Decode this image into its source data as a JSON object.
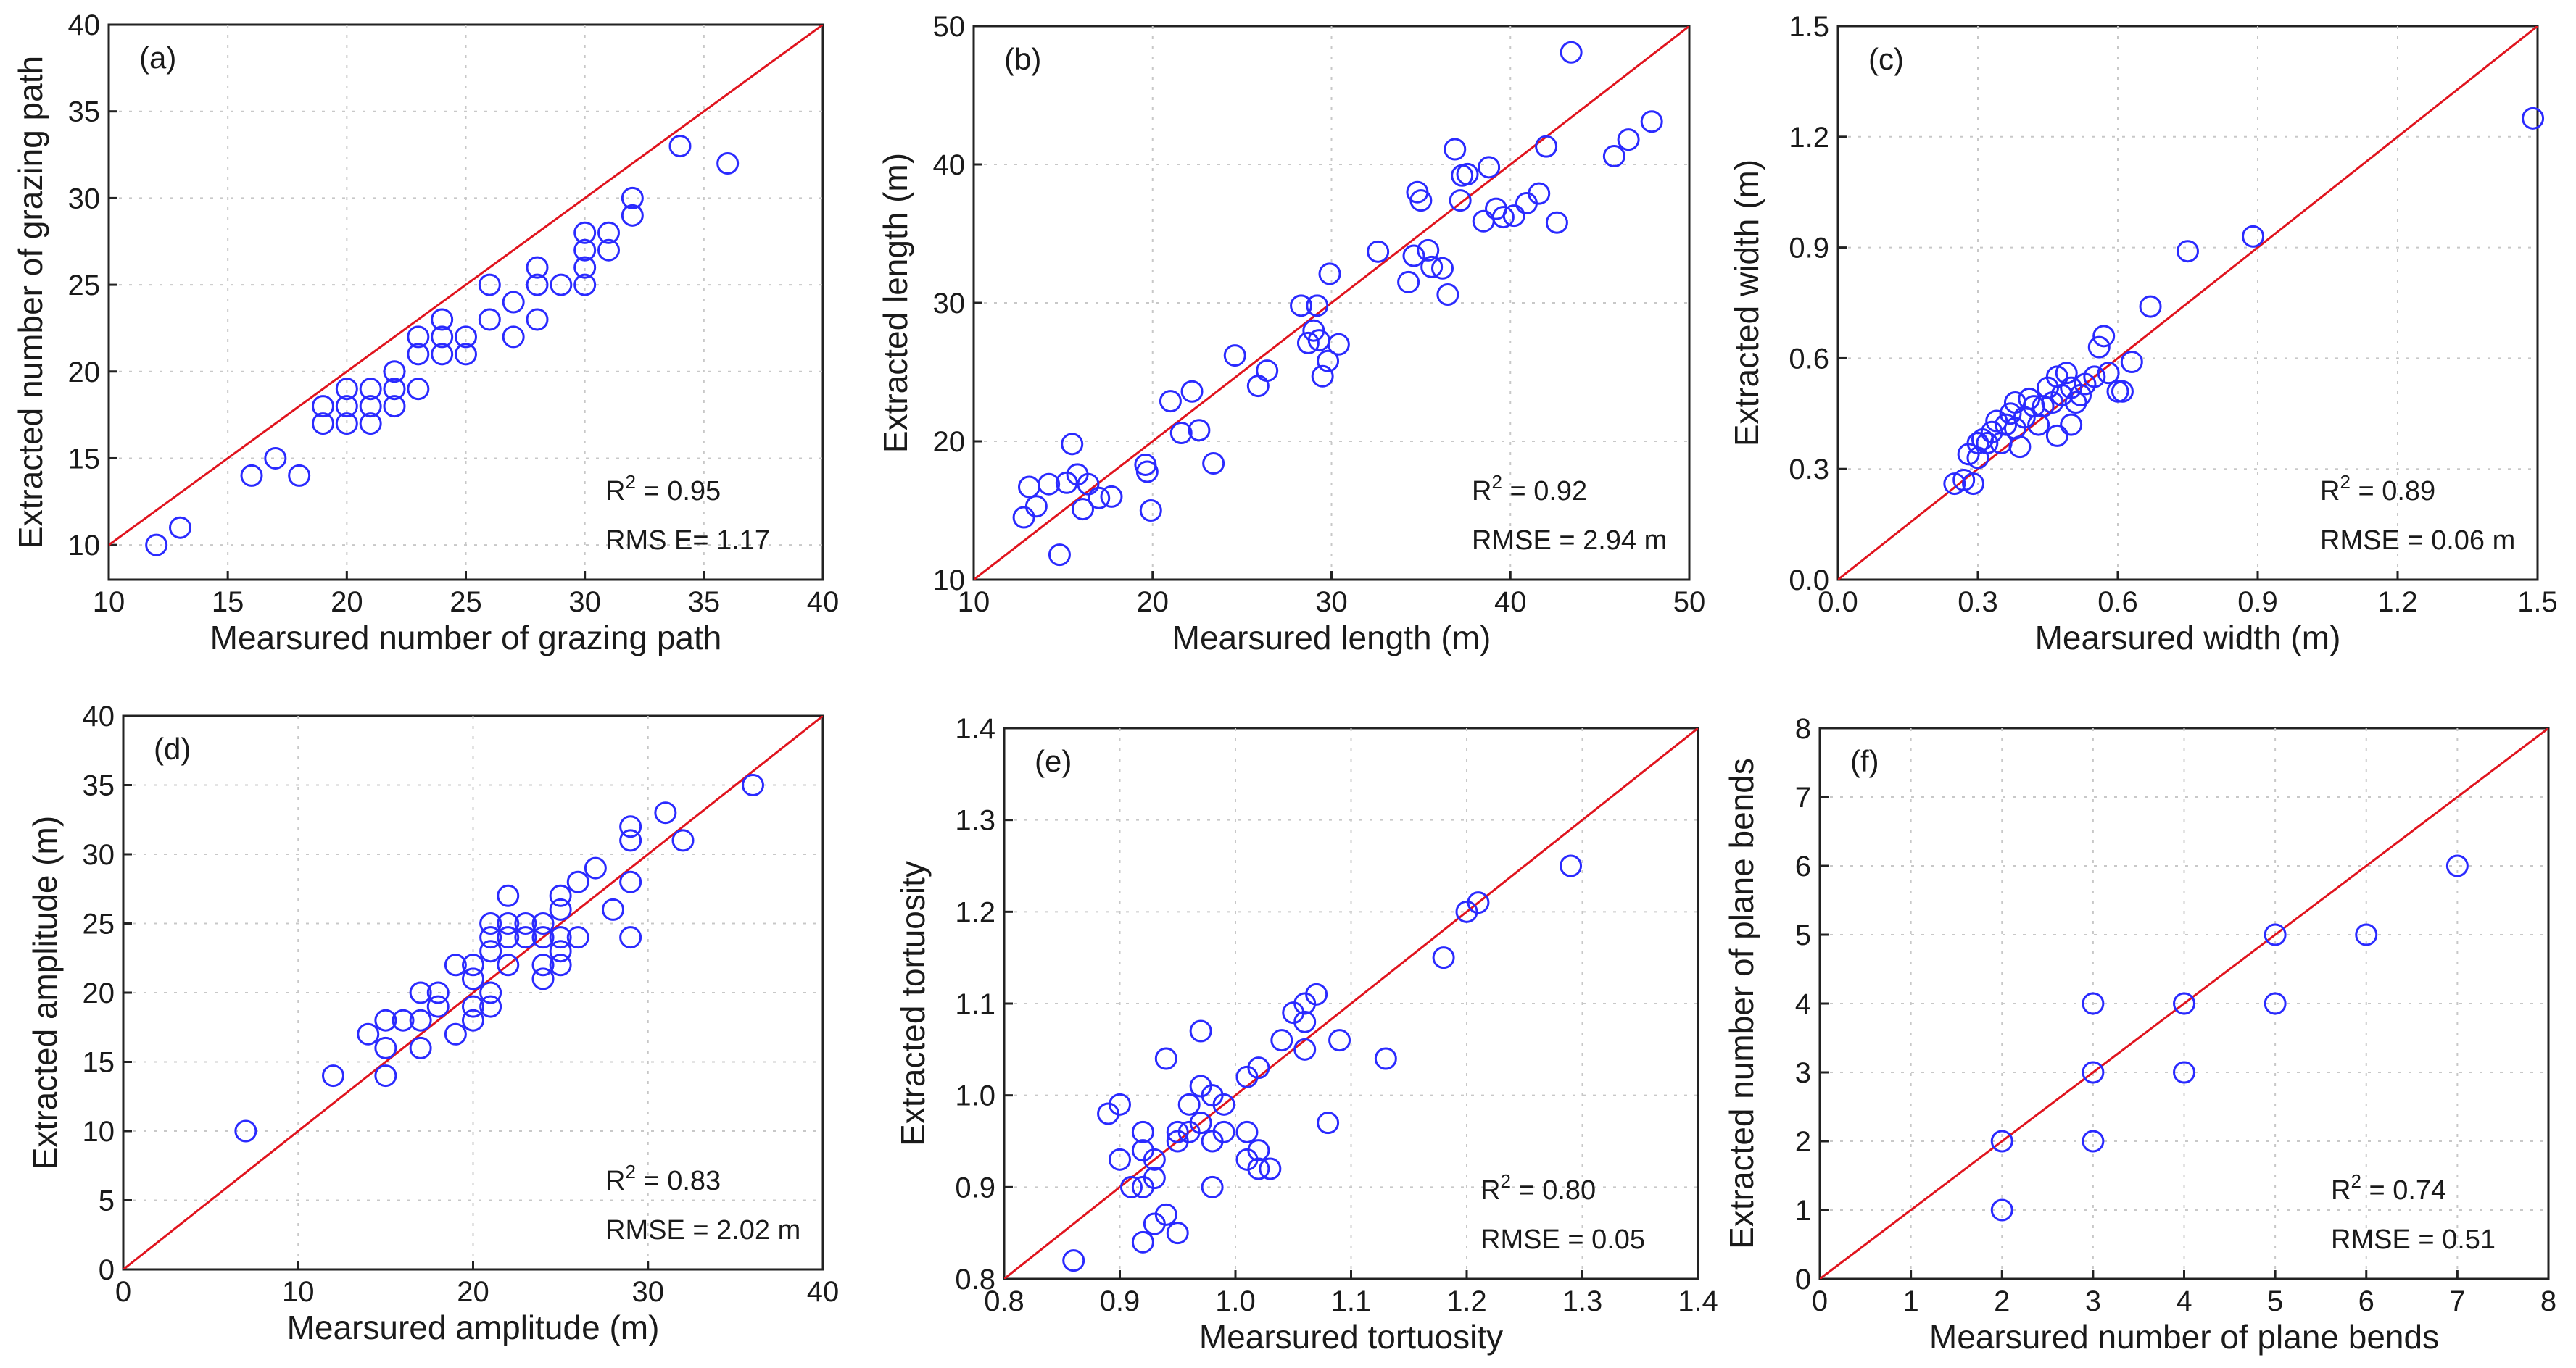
{
  "colors": {
    "points": "#2a2aff",
    "line": "#e0141e",
    "axis": "#222222",
    "grid": "#c8c8c8"
  },
  "chart_data": [
    {
      "type": "scatter",
      "panel_label": "(a)",
      "xlabel": "Mearsured number of grazing path",
      "ylabel": "Extracted number of grazing path",
      "xlim": [
        10,
        40
      ],
      "ylim": [
        8,
        40
      ],
      "xticks": [
        10,
        15,
        20,
        25,
        30,
        35,
        40
      ],
      "xtick_labels": [
        "10",
        "15",
        "20",
        "25",
        "30",
        "35",
        "40"
      ],
      "yticks": [
        10,
        15,
        20,
        25,
        30,
        35,
        40
      ],
      "ytick_labels": [
        "10",
        "15",
        "20",
        "25",
        "30",
        "35",
        "40"
      ],
      "line": [
        [
          10,
          10
        ],
        [
          40,
          40
        ]
      ],
      "stats": {
        "r2_prefix": "R",
        "r2_sup": "2",
        "r2_value": " = 0.95",
        "rmse": "RMS E= 1.17"
      },
      "points": [
        [
          12,
          10
        ],
        [
          13,
          11
        ],
        [
          16,
          14
        ],
        [
          17,
          15
        ],
        [
          18,
          14
        ],
        [
          19,
          17
        ],
        [
          19,
          18
        ],
        [
          20,
          17
        ],
        [
          20,
          18
        ],
        [
          20,
          19
        ],
        [
          21,
          17
        ],
        [
          21,
          18
        ],
        [
          21,
          19
        ],
        [
          22,
          18
        ],
        [
          22,
          19
        ],
        [
          22,
          20
        ],
        [
          23,
          19
        ],
        [
          23,
          21
        ],
        [
          23,
          22
        ],
        [
          24,
          21
        ],
        [
          24,
          22
        ],
        [
          24,
          23
        ],
        [
          25,
          21
        ],
        [
          25,
          22
        ],
        [
          26,
          23
        ],
        [
          26,
          25
        ],
        [
          27,
          22
        ],
        [
          27,
          24
        ],
        [
          28,
          23
        ],
        [
          28,
          25
        ],
        [
          28,
          26
        ],
        [
          29,
          25
        ],
        [
          30,
          25
        ],
        [
          30,
          26
        ],
        [
          30,
          27
        ],
        [
          30,
          28
        ],
        [
          31,
          27
        ],
        [
          31,
          28
        ],
        [
          32,
          29
        ],
        [
          32,
          30
        ],
        [
          34,
          33
        ],
        [
          36,
          32
        ]
      ]
    },
    {
      "type": "scatter",
      "panel_label": "(b)",
      "xlabel": "Mearsured length (m)",
      "ylabel": "Extracted length (m)",
      "xlim": [
        10,
        50
      ],
      "ylim": [
        10,
        50
      ],
      "xticks": [
        10,
        20,
        30,
        40,
        50
      ],
      "xtick_labels": [
        "10",
        "20",
        "30",
        "40",
        "50"
      ],
      "yticks": [
        10,
        20,
        30,
        40,
        50
      ],
      "ytick_labels": [
        "10",
        "20",
        "30",
        "40",
        "50"
      ],
      "line": [
        [
          10,
          10
        ],
        [
          50,
          50
        ]
      ],
      "stats": {
        "r2_prefix": "R",
        "r2_sup": "2",
        "r2_value": " = 0.92",
        "rmse": "RMSE = 2.94 m"
      },
      "points": [
        [
          12.8,
          14.5
        ],
        [
          13.1,
          16.7
        ],
        [
          13.5,
          15.3
        ],
        [
          14.2,
          16.9
        ],
        [
          14.8,
          11.8
        ],
        [
          15.2,
          17.0
        ],
        [
          15.5,
          19.8
        ],
        [
          15.8,
          17.6
        ],
        [
          16.1,
          15.1
        ],
        [
          16.4,
          16.9
        ],
        [
          17.0,
          15.9
        ],
        [
          17.7,
          16.0
        ],
        [
          19.6,
          18.3
        ],
        [
          19.7,
          17.8
        ],
        [
          19.9,
          15.0
        ],
        [
          21.0,
          22.9
        ],
        [
          21.6,
          20.6
        ],
        [
          22.2,
          23.6
        ],
        [
          22.6,
          20.8
        ],
        [
          23.4,
          18.4
        ],
        [
          24.6,
          26.2
        ],
        [
          25.9,
          24.0
        ],
        [
          26.4,
          25.1
        ],
        [
          28.3,
          29.8
        ],
        [
          28.7,
          27.1
        ],
        [
          29.0,
          28.0
        ],
        [
          29.2,
          29.8
        ],
        [
          29.3,
          27.3
        ],
        [
          29.5,
          24.7
        ],
        [
          29.8,
          25.8
        ],
        [
          29.9,
          32.1
        ],
        [
          30.4,
          27.0
        ],
        [
          32.6,
          33.7
        ],
        [
          34.3,
          31.5
        ],
        [
          34.6,
          33.4
        ],
        [
          34.8,
          38.0
        ],
        [
          35.0,
          37.4
        ],
        [
          35.4,
          33.8
        ],
        [
          35.6,
          32.6
        ],
        [
          36.2,
          32.5
        ],
        [
          36.5,
          30.6
        ],
        [
          36.9,
          41.1
        ],
        [
          37.2,
          37.4
        ],
        [
          37.3,
          39.2
        ],
        [
          37.6,
          39.3
        ],
        [
          38.5,
          35.9
        ],
        [
          38.8,
          39.8
        ],
        [
          39.2,
          36.8
        ],
        [
          39.6,
          36.2
        ],
        [
          40.2,
          36.3
        ],
        [
          40.9,
          37.2
        ],
        [
          41.6,
          37.9
        ],
        [
          42.0,
          41.3
        ],
        [
          42.6,
          35.8
        ],
        [
          43.4,
          48.1
        ],
        [
          45.8,
          40.6
        ],
        [
          46.6,
          41.8
        ],
        [
          47.9,
          43.1
        ]
      ]
    },
    {
      "type": "scatter",
      "panel_label": "(c)",
      "xlabel": "Mearsured width (m)",
      "ylabel": "Extracted width (m)",
      "xlim": [
        0.0,
        1.5
      ],
      "ylim": [
        0.0,
        1.5
      ],
      "xticks": [
        0.0,
        0.3,
        0.6,
        0.9,
        1.2,
        1.5
      ],
      "xtick_labels": [
        "0.0",
        "0.3",
        "0.6",
        "0.9",
        "1.2",
        "1.5"
      ],
      "yticks": [
        0.0,
        0.3,
        0.6,
        0.9,
        1.2,
        1.5
      ],
      "ytick_labels": [
        "0.0",
        "0.3",
        "0.6",
        "0.9",
        "1.2",
        "1.5"
      ],
      "line": [
        [
          0.0,
          0.0
        ],
        [
          1.5,
          1.5
        ]
      ],
      "stats": {
        "r2_prefix": "R",
        "r2_sup": "2",
        "r2_value": " = 0.89",
        "rmse": "RMSE = 0.06 m"
      },
      "points": [
        [
          0.25,
          0.26
        ],
        [
          0.27,
          0.27
        ],
        [
          0.28,
          0.34
        ],
        [
          0.29,
          0.26
        ],
        [
          0.3,
          0.37
        ],
        [
          0.3,
          0.33
        ],
        [
          0.31,
          0.38
        ],
        [
          0.32,
          0.37
        ],
        [
          0.33,
          0.4
        ],
        [
          0.34,
          0.43
        ],
        [
          0.35,
          0.37
        ],
        [
          0.36,
          0.42
        ],
        [
          0.37,
          0.45
        ],
        [
          0.38,
          0.48
        ],
        [
          0.38,
          0.41
        ],
        [
          0.39,
          0.36
        ],
        [
          0.4,
          0.44
        ],
        [
          0.41,
          0.49
        ],
        [
          0.42,
          0.47
        ],
        [
          0.43,
          0.42
        ],
        [
          0.44,
          0.47
        ],
        [
          0.45,
          0.52
        ],
        [
          0.46,
          0.48
        ],
        [
          0.47,
          0.55
        ],
        [
          0.47,
          0.39
        ],
        [
          0.48,
          0.5
        ],
        [
          0.49,
          0.56
        ],
        [
          0.5,
          0.42
        ],
        [
          0.5,
          0.52
        ],
        [
          0.51,
          0.48
        ],
        [
          0.52,
          0.5
        ],
        [
          0.53,
          0.53
        ],
        [
          0.55,
          0.55
        ],
        [
          0.56,
          0.63
        ],
        [
          0.57,
          0.66
        ],
        [
          0.58,
          0.56
        ],
        [
          0.6,
          0.51
        ],
        [
          0.61,
          0.51
        ],
        [
          0.63,
          0.59
        ],
        [
          0.67,
          0.74
        ],
        [
          0.75,
          0.89
        ],
        [
          0.89,
          0.93
        ],
        [
          1.49,
          1.25
        ]
      ]
    },
    {
      "type": "scatter",
      "panel_label": "(d)",
      "xlabel": "Mearsured amplitude (m)",
      "ylabel": "Extracted amplitude (m)",
      "xlim": [
        0,
        40
      ],
      "ylim": [
        0,
        40
      ],
      "xticks": [
        0,
        10,
        20,
        30,
        40
      ],
      "xtick_labels": [
        "0",
        "10",
        "20",
        "30",
        "40"
      ],
      "yticks": [
        0,
        5,
        10,
        15,
        20,
        25,
        30,
        35,
        40
      ],
      "ytick_labels": [
        "0",
        "5",
        "10",
        "15",
        "20",
        "25",
        "30",
        "35",
        "40"
      ],
      "line": [
        [
          0,
          0
        ],
        [
          40,
          40
        ]
      ],
      "stats": {
        "r2_prefix": "R",
        "r2_sup": "2",
        "r2_value": " = 0.83",
        "rmse": "RMSE = 2.02 m"
      },
      "points": [
        [
          7,
          10
        ],
        [
          12,
          14
        ],
        [
          14,
          17
        ],
        [
          15,
          14
        ],
        [
          15,
          16
        ],
        [
          15,
          18
        ],
        [
          16,
          18
        ],
        [
          17,
          16
        ],
        [
          17,
          18
        ],
        [
          17,
          20
        ],
        [
          18,
          19
        ],
        [
          18,
          20
        ],
        [
          19,
          17
        ],
        [
          19,
          22
        ],
        [
          20,
          18
        ],
        [
          20,
          19
        ],
        [
          20,
          21
        ],
        [
          20,
          22
        ],
        [
          21,
          19
        ],
        [
          21,
          20
        ],
        [
          21,
          23
        ],
        [
          21,
          24
        ],
        [
          21,
          25
        ],
        [
          22,
          22
        ],
        [
          22,
          24
        ],
        [
          22,
          25
        ],
        [
          22,
          27
        ],
        [
          23,
          24
        ],
        [
          23,
          25
        ],
        [
          24,
          21
        ],
        [
          24,
          22
        ],
        [
          24,
          24
        ],
        [
          24,
          25
        ],
        [
          25,
          22
        ],
        [
          25,
          23
        ],
        [
          25,
          24
        ],
        [
          25,
          26
        ],
        [
          25,
          27
        ],
        [
          26,
          24
        ],
        [
          26,
          28
        ],
        [
          27,
          29
        ],
        [
          28,
          26
        ],
        [
          29,
          24
        ],
        [
          29,
          28
        ],
        [
          29,
          31
        ],
        [
          29,
          32
        ],
        [
          31,
          33
        ],
        [
          32,
          31
        ],
        [
          36,
          35
        ]
      ]
    },
    {
      "type": "scatter",
      "panel_label": "(e)",
      "xlabel": "Mearsured tortuosity",
      "ylabel": "Extracted tortuosity",
      "xlim": [
        0.8,
        1.4
      ],
      "ylim": [
        0.8,
        1.4
      ],
      "xticks": [
        0.8,
        0.9,
        1.0,
        1.1,
        1.2,
        1.3,
        1.4
      ],
      "xtick_labels": [
        "0.8",
        "0.9",
        "1.0",
        "1.1",
        "1.2",
        "1.3",
        "1.4"
      ],
      "yticks": [
        0.8,
        0.9,
        1.0,
        1.1,
        1.2,
        1.3,
        1.4
      ],
      "ytick_labels": [
        "0.8",
        "0.9",
        "1.0",
        "1.1",
        "1.2",
        "1.3",
        "1.4"
      ],
      "line": [
        [
          0.8,
          0.8
        ],
        [
          1.4,
          1.4
        ]
      ],
      "stats": {
        "r2_prefix": "R",
        "r2_sup": "2",
        "r2_value": " = 0.80",
        "rmse": "RMSE = 0.05"
      },
      "points": [
        [
          0.86,
          0.82
        ],
        [
          0.89,
          0.98
        ],
        [
          0.9,
          0.99
        ],
        [
          0.9,
          0.93
        ],
        [
          0.91,
          0.9
        ],
        [
          0.92,
          0.84
        ],
        [
          0.92,
          0.9
        ],
        [
          0.92,
          0.94
        ],
        [
          0.92,
          0.96
        ],
        [
          0.93,
          0.86
        ],
        [
          0.93,
          0.91
        ],
        [
          0.93,
          0.93
        ],
        [
          0.94,
          0.87
        ],
        [
          0.94,
          1.04
        ],
        [
          0.95,
          0.85
        ],
        [
          0.95,
          0.95
        ],
        [
          0.95,
          0.96
        ],
        [
          0.96,
          0.96
        ],
        [
          0.96,
          0.99
        ],
        [
          0.97,
          0.97
        ],
        [
          0.97,
          1.01
        ],
        [
          0.97,
          1.07
        ],
        [
          0.98,
          0.9
        ],
        [
          0.98,
          0.95
        ],
        [
          0.98,
          1.0
        ],
        [
          0.99,
          0.96
        ],
        [
          0.99,
          0.99
        ],
        [
          1.01,
          0.93
        ],
        [
          1.01,
          0.96
        ],
        [
          1.01,
          1.02
        ],
        [
          1.02,
          0.92
        ],
        [
          1.02,
          0.94
        ],
        [
          1.02,
          1.03
        ],
        [
          1.03,
          0.92
        ],
        [
          1.04,
          1.06
        ],
        [
          1.05,
          1.09
        ],
        [
          1.06,
          1.05
        ],
        [
          1.06,
          1.08
        ],
        [
          1.06,
          1.1
        ],
        [
          1.07,
          1.11
        ],
        [
          1.08,
          0.97
        ],
        [
          1.09,
          1.06
        ],
        [
          1.13,
          1.04
        ],
        [
          1.18,
          1.15
        ],
        [
          1.2,
          1.2
        ],
        [
          1.21,
          1.21
        ],
        [
          1.29,
          1.25
        ]
      ]
    },
    {
      "type": "scatter",
      "panel_label": "(f)",
      "xlabel": "Mearsured number of plane bends",
      "ylabel": "Extracted number of plane bends",
      "xlim": [
        0,
        8
      ],
      "ylim": [
        0,
        8
      ],
      "xticks": [
        0,
        1,
        2,
        3,
        4,
        5,
        6,
        7,
        8
      ],
      "xtick_labels": [
        "0",
        "1",
        "2",
        "3",
        "4",
        "5",
        "6",
        "7",
        "8"
      ],
      "yticks": [
        0,
        1,
        2,
        3,
        4,
        5,
        6,
        7,
        8
      ],
      "ytick_labels": [
        "0",
        "1",
        "2",
        "3",
        "4",
        "5",
        "6",
        "7",
        "8"
      ],
      "line": [
        [
          0,
          0
        ],
        [
          8,
          8
        ]
      ],
      "stats": {
        "r2_prefix": "R",
        "r2_sup": "2",
        "r2_value": " = 0.74",
        "rmse": "RMSE = 0.51"
      },
      "points": [
        [
          2,
          1
        ],
        [
          2,
          2
        ],
        [
          3,
          2
        ],
        [
          3,
          3
        ],
        [
          3,
          4
        ],
        [
          4,
          3
        ],
        [
          4,
          4
        ],
        [
          5,
          4
        ],
        [
          5,
          5
        ],
        [
          6,
          5
        ],
        [
          7,
          6
        ]
      ]
    }
  ]
}
